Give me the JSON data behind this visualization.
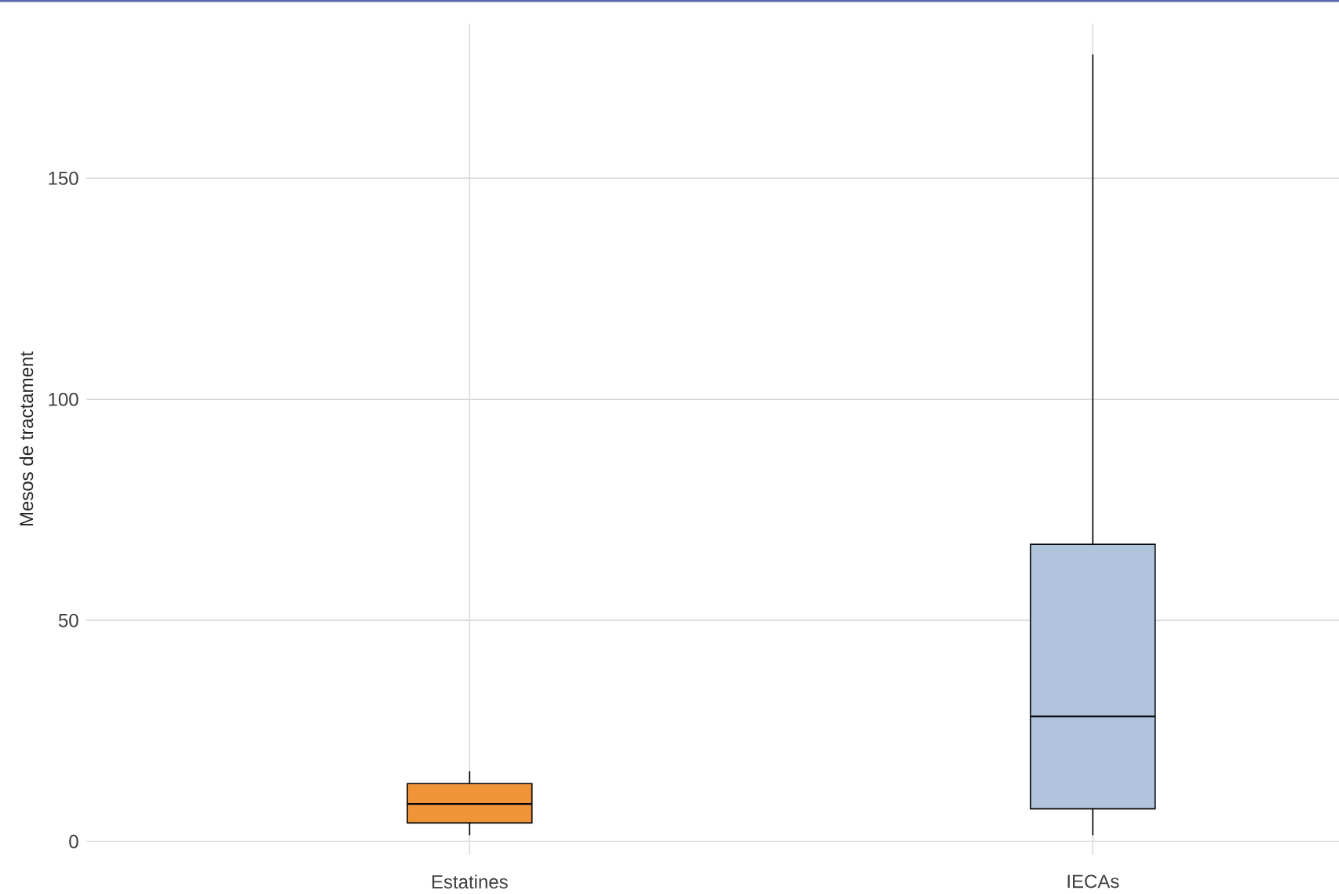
{
  "chart_data": {
    "type": "box",
    "ylabel": "Mesos de tractament",
    "categories": [
      "Estatines",
      "IECAs"
    ],
    "series": [
      {
        "color": "#f0943a",
        "boxes": [
          {
            "low": 1.4,
            "q1": 4.2,
            "median": 8.5,
            "q3": 13.1,
            "high": 15.9
          },
          null
        ]
      },
      {
        "color": "#b0c4de",
        "boxes": [
          null,
          {
            "low": 1.4,
            "q1": 7.4,
            "median": 28.3,
            "q3": 67.2,
            "high": 178
          }
        ]
      }
    ],
    "ylim": [
      -3,
      185
    ],
    "yticks": [
      0,
      50,
      100,
      150
    ],
    "grid": true
  }
}
